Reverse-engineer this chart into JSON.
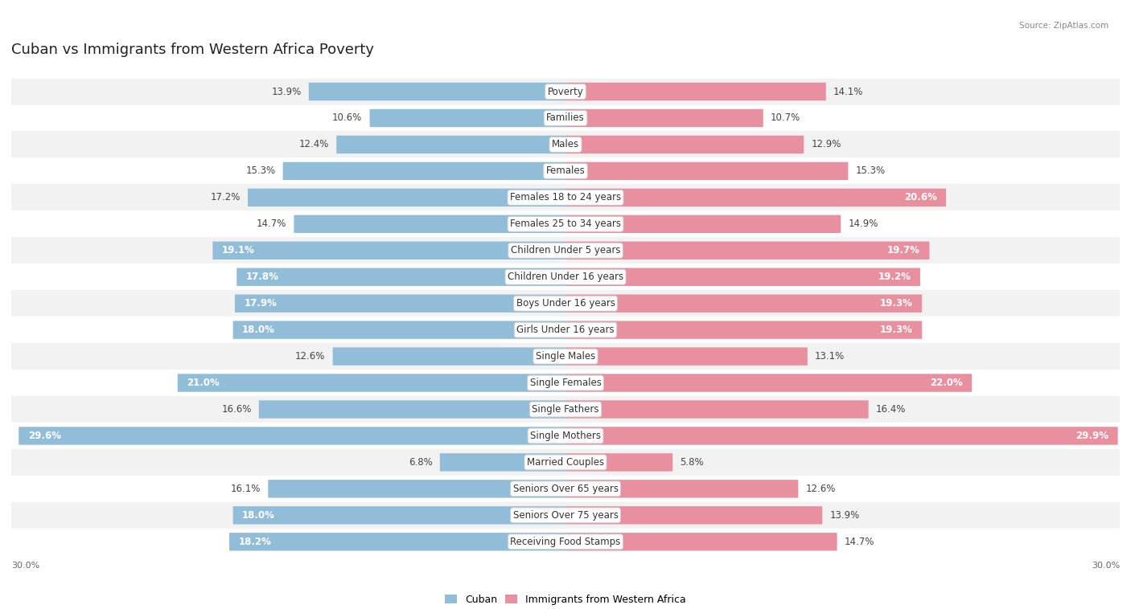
{
  "title": "Cuban vs Immigrants from Western Africa Poverty",
  "source": "Source: ZipAtlas.com",
  "categories": [
    "Poverty",
    "Families",
    "Males",
    "Females",
    "Females 18 to 24 years",
    "Females 25 to 34 years",
    "Children Under 5 years",
    "Children Under 16 years",
    "Boys Under 16 years",
    "Girls Under 16 years",
    "Single Males",
    "Single Females",
    "Single Fathers",
    "Single Mothers",
    "Married Couples",
    "Seniors Over 65 years",
    "Seniors Over 75 years",
    "Receiving Food Stamps"
  ],
  "cuban": [
    13.9,
    10.6,
    12.4,
    15.3,
    17.2,
    14.7,
    19.1,
    17.8,
    17.9,
    18.0,
    12.6,
    21.0,
    16.6,
    29.6,
    6.8,
    16.1,
    18.0,
    18.2
  ],
  "western_africa": [
    14.1,
    10.7,
    12.9,
    15.3,
    20.6,
    14.9,
    19.7,
    19.2,
    19.3,
    19.3,
    13.1,
    22.0,
    16.4,
    29.9,
    5.8,
    12.6,
    13.9,
    14.7
  ],
  "cuban_color": "#92bdd9",
  "western_africa_color": "#e8909f",
  "axis_max": 30.0,
  "row_colors": [
    "#f2f2f2",
    "#ffffff"
  ],
  "title_fontsize": 13,
  "label_fontsize": 8.5,
  "category_fontsize": 8.5,
  "highlight_threshold_cuban": 17.5,
  "highlight_threshold_wa": 17.5,
  "bar_height": 0.68
}
